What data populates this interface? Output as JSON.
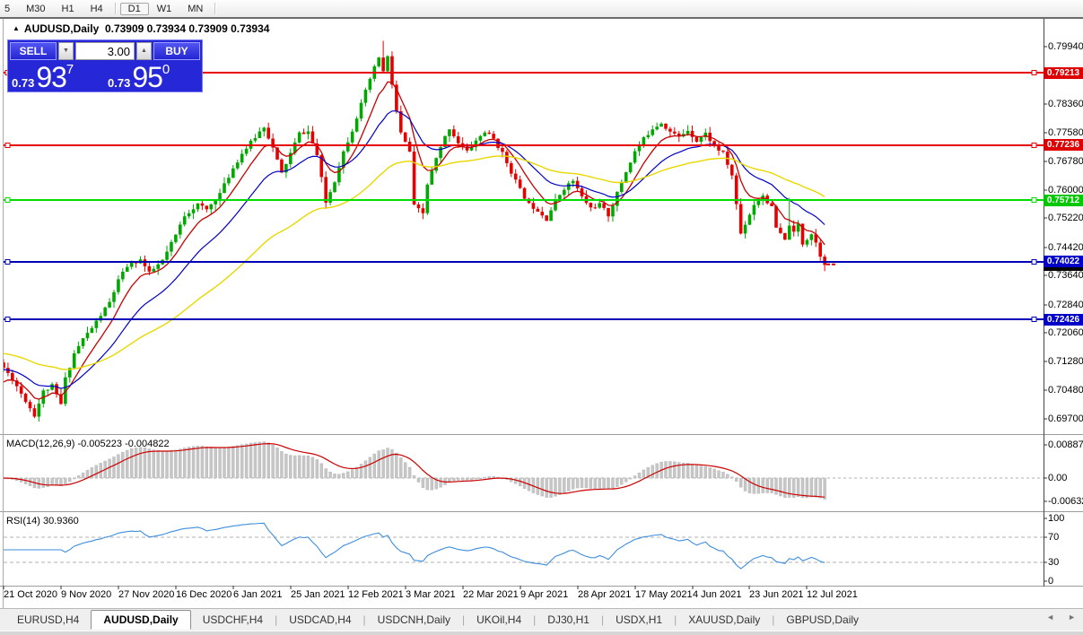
{
  "toolbar": {
    "items": [
      {
        "label": "5",
        "partial": true
      },
      {
        "label": "M30"
      },
      {
        "label": "H1"
      },
      {
        "label": "H4"
      },
      {
        "sep": true
      },
      {
        "label": "D1",
        "selected": true
      },
      {
        "label": "W1"
      },
      {
        "label": "MN"
      },
      {
        "sep": true
      }
    ]
  },
  "chart_window": {
    "collapse_icon": "▲",
    "title": "AUDUSD,Daily  0.73909 0.73934 0.73909 0.73934"
  },
  "trade_panel": {
    "sell_label": "SELL",
    "buy_label": "BUY",
    "volume": "3.00",
    "spinner_down_icon": "▼",
    "spinner_up_icon": "▲",
    "sell_price": {
      "prefix": "0.73",
      "big": "93",
      "sup": "7"
    },
    "buy_price": {
      "prefix": "0.73",
      "big": "95",
      "sup": "0"
    }
  },
  "colors": {
    "candle_up": "#00A800",
    "candle_down": "#E60000",
    "ma_fast": "#C80000",
    "ma_medium": "#0000C8",
    "ma_slow": "#E8D800",
    "macd_hist": "#C6C6C6",
    "macd_signal": "#CC0000",
    "rsi_line": "#3E8EDE",
    "bid_badge": "#000000",
    "axis_line": "#444444",
    "separator": "#9C9C9C"
  },
  "chart_data": {
    "type": "candlestick",
    "symbol": "AUDUSD",
    "timeframe": "Daily",
    "current_ohlc": {
      "open": "0.73909",
      "high": "0.73934",
      "low": "0.73909",
      "close": "0.73934"
    },
    "bid": "0.73934",
    "sell_quote": "0.73937",
    "buy_quote": "0.73950",
    "candle_count": 187,
    "candles_per_date_tick": 13,
    "seed": 11,
    "close_path_anchors": [
      [
        0,
        0.711
      ],
      [
        2,
        0.708
      ],
      [
        4,
        0.704
      ],
      [
        7,
        0.698
      ],
      [
        9,
        0.7045
      ],
      [
        11,
        0.706
      ],
      [
        13,
        0.701
      ],
      [
        14,
        0.708
      ],
      [
        16,
        0.715
      ],
      [
        18,
        0.719
      ],
      [
        20,
        0.722
      ],
      [
        22,
        0.7255
      ],
      [
        24,
        0.729
      ],
      [
        26,
        0.735
      ],
      [
        28,
        0.739
      ],
      [
        31,
        0.7408
      ],
      [
        33,
        0.737
      ],
      [
        36,
        0.7405
      ],
      [
        39,
        0.7475
      ],
      [
        41,
        0.753
      ],
      [
        44,
        0.756
      ],
      [
        46,
        0.7545
      ],
      [
        49,
        0.759
      ],
      [
        52,
        0.766
      ],
      [
        54,
        0.77
      ],
      [
        57,
        0.7745
      ],
      [
        59,
        0.7775
      ],
      [
        61,
        0.7715
      ],
      [
        63,
        0.7645
      ],
      [
        65,
        0.77
      ],
      [
        67,
        0.7755
      ],
      [
        69,
        0.776
      ],
      [
        71,
        0.7695
      ],
      [
        73,
        0.7565
      ],
      [
        75,
        0.7625
      ],
      [
        77,
        0.7705
      ],
      [
        79,
        0.7765
      ],
      [
        81,
        0.7835
      ],
      [
        83,
        0.7905
      ],
      [
        85,
        0.7965
      ],
      [
        86,
        0.7925
      ],
      [
        87,
        0.7965
      ],
      [
        89,
        0.7815
      ],
      [
        90,
        0.7755
      ],
      [
        92,
        0.7705
      ],
      [
        93,
        0.7555
      ],
      [
        95,
        0.7535
      ],
      [
        96,
        0.7615
      ],
      [
        98,
        0.7685
      ],
      [
        100,
        0.7745
      ],
      [
        101,
        0.777
      ],
      [
        103,
        0.773
      ],
      [
        105,
        0.7705
      ],
      [
        107,
        0.7735
      ],
      [
        109,
        0.776
      ],
      [
        111,
        0.774
      ],
      [
        113,
        0.77
      ],
      [
        115,
        0.765
      ],
      [
        117,
        0.76
      ],
      [
        119,
        0.756
      ],
      [
        121,
        0.7545
      ],
      [
        123,
        0.752
      ],
      [
        125,
        0.757
      ],
      [
        127,
        0.7605
      ],
      [
        129,
        0.7625
      ],
      [
        131,
        0.758
      ],
      [
        133,
        0.755
      ],
      [
        135,
        0.756
      ],
      [
        137,
        0.753
      ],
      [
        139,
        0.759
      ],
      [
        141,
        0.765
      ],
      [
        143,
        0.7705
      ],
      [
        145,
        0.774
      ],
      [
        147,
        0.777
      ],
      [
        149,
        0.7785
      ],
      [
        151,
        0.776
      ],
      [
        153,
        0.7745
      ],
      [
        155,
        0.7765
      ],
      [
        157,
        0.7735
      ],
      [
        159,
        0.7755
      ],
      [
        161,
        0.772
      ],
      [
        163,
        0.77
      ],
      [
        165,
        0.764
      ],
      [
        166,
        0.756
      ],
      [
        167,
        0.748
      ],
      [
        170,
        0.756
      ],
      [
        172,
        0.7585
      ],
      [
        174,
        0.755
      ],
      [
        175,
        0.7495
      ],
      [
        177,
        0.746
      ],
      [
        178,
        0.7505
      ],
      [
        179,
        0.748
      ],
      [
        180,
        0.7505
      ],
      [
        181,
        0.7452
      ],
      [
        183,
        0.748
      ],
      [
        184,
        0.7455
      ],
      [
        185,
        0.742
      ],
      [
        186,
        0.73934
      ]
    ],
    "wick_overrides": [
      {
        "i": 7,
        "low": 0.6972
      },
      {
        "i": 86,
        "high": 0.801
      },
      {
        "i": 178,
        "high": 0.7578
      },
      {
        "i": 186,
        "close": 0.73934
      }
    ],
    "moving_averages": [
      {
        "name": "fast",
        "period": 8,
        "seed": 0.706
      },
      {
        "name": "medium",
        "period": 20,
        "seed": 0.7105
      },
      {
        "name": "slow",
        "period": 55,
        "seed": 0.7151
      }
    ],
    "horizontal_lines": [
      {
        "price": 0.79213,
        "label": "0.79213",
        "color": "#E60000",
        "badge": "#DE0000"
      },
      {
        "price": 0.77236,
        "label": "0.77236",
        "color": "#E60000",
        "badge": "#DE0000"
      },
      {
        "price": 0.75712,
        "label": "0.75712",
        "color": "#00DC00",
        "badge": "#00C800"
      },
      {
        "price": 0.74022,
        "label": "0.74022",
        "color": "#0000B8",
        "badge": "#0000C8"
      },
      {
        "price": 0.72426,
        "label": "0.72426",
        "color": "#0000B8",
        "badge": "#0000C8"
      }
    ],
    "price_axis_ticks": [
      "0.79940",
      "0.78360",
      "0.77580",
      "0.76780",
      "0.76000",
      "0.75220",
      "0.74420",
      "0.73640",
      "0.72840",
      "0.72060",
      "0.71280",
      "0.70480",
      "0.69700"
    ],
    "macd": {
      "label": "MACD(12,26,9) -0.005223 -0.004822",
      "fast": 12,
      "slow": 26,
      "signal": 9,
      "main_value": -0.005223,
      "signal_value": -0.004822,
      "axis_ticks": [
        "0.008871",
        "0.00",
        "-0.00632"
      ],
      "axis_values": [
        0.008871,
        0,
        -0.00632
      ]
    },
    "rsi": {
      "label": "RSI(14) 30.9360",
      "period": 14,
      "value": 30.936,
      "axis_ticks": [
        "100",
        "70",
        "30",
        "0"
      ],
      "axis_values": [
        100,
        70,
        30,
        0
      ],
      "levels": [
        70,
        30
      ]
    },
    "date_ticks": [
      "21 Oct 2020",
      "9 Nov 2020",
      "27 Nov 2020",
      "16 Dec 2020",
      "6 Jan 2021",
      "25 Jan 2021",
      "12 Feb 2021",
      "3 Mar 2021",
      "22 Mar 2021",
      "9 Apr 2021",
      "28 Apr 2021",
      "17 May 2021",
      "4 Jun 2021",
      "23 Jun 2021",
      "12 Jul 2021"
    ]
  },
  "bottom_tabs": {
    "tabs": [
      "EURUSD,H4",
      "AUDUSD,Daily",
      "USDCHF,H4",
      "USDCAD,H4",
      "USDCNH,Daily",
      "UKOil,H4",
      "DJ30,H1",
      "USDX,H1",
      "XAUUSD,Daily",
      "GBPUSD,Daily"
    ],
    "active": "AUDUSD,Daily",
    "nav_left": "◄",
    "nav_right": "►"
  }
}
